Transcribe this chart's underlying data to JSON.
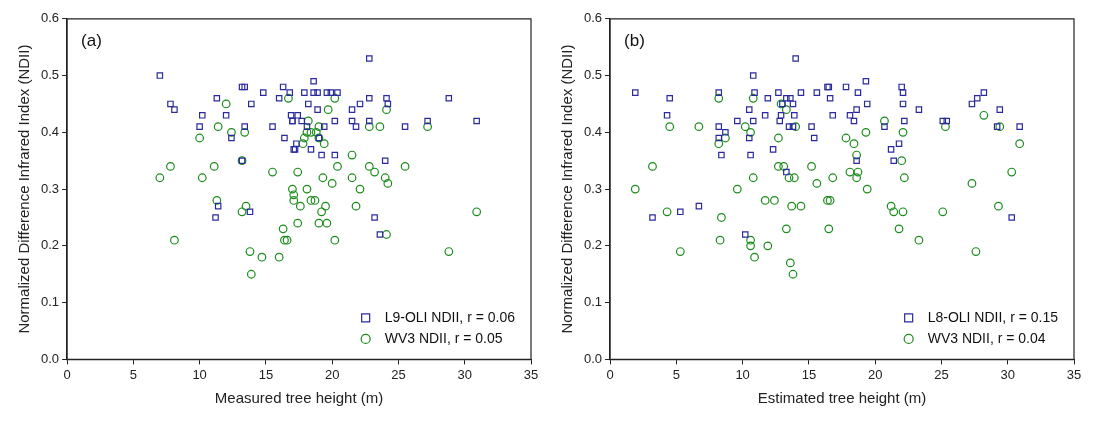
{
  "chart_data": [
    {
      "type": "scatter",
      "xlabel": "Measured tree height (m)",
      "ylabel": "Normalized Difference Infrared Index (NDII)",
      "annotations": [
        "(a)"
      ],
      "xlim": [
        0,
        35
      ],
      "xticks": [
        0,
        5,
        10,
        15,
        20,
        25,
        30,
        35
      ],
      "ylim": [
        0,
        0.6
      ],
      "yticks": [
        {
          "value": 0,
          "label": "0.0"
        },
        0.1,
        0.2,
        0.3,
        0.4,
        0.5,
        0.6
      ],
      "grid": false,
      "legend": "bottom right",
      "series": [
        {
          "name": "L9-OLI NDII, r = 0.06",
          "color": "#2a2a9e",
          "marker": "square",
          "x": [
            7.0,
            7.8,
            8.1,
            10.2,
            10.0,
            11.3,
            12.0,
            12.4,
            13.2,
            13.4,
            13.4,
            13.9,
            13.2,
            11.4,
            11.2,
            13.8,
            14.8,
            15.5,
            16.0,
            16.3,
            16.8,
            16.4,
            17.0,
            17.1,
            22.8,
            18.6,
            17.9,
            18.6,
            18.9,
            19.6,
            19.9,
            20.4,
            18.2,
            18.9,
            16.9,
            17.4,
            17.0,
            17.7,
            18.1,
            19.4,
            20.2,
            17.3,
            17.2,
            18.4,
            19.2,
            20.2,
            19.0,
            21.5,
            22.1,
            22.8,
            24.1,
            24.2,
            21.5,
            21.8,
            22.8,
            25.5,
            27.2,
            28.8,
            30.9,
            24.0,
            23.2,
            23.6
          ],
          "values": [
            0.5,
            0.45,
            0.44,
            0.43,
            0.41,
            0.46,
            0.43,
            0.39,
            0.48,
            0.48,
            0.41,
            0.45,
            0.35,
            0.27,
            0.25,
            0.26,
            0.47,
            0.41,
            0.46,
            0.48,
            0.47,
            0.39,
            0.42,
            0.37,
            0.53,
            0.49,
            0.47,
            0.47,
            0.47,
            0.47,
            0.47,
            0.47,
            0.45,
            0.44,
            0.43,
            0.43,
            0.42,
            0.42,
            0.41,
            0.41,
            0.42,
            0.38,
            0.37,
            0.37,
            0.36,
            0.36,
            0.39,
            0.44,
            0.45,
            0.46,
            0.46,
            0.45,
            0.42,
            0.41,
            0.42,
            0.41,
            0.42,
            0.46,
            0.42,
            0.35,
            0.25,
            0.22
          ]
        },
        {
          "name": "WV3 NDII, r = 0.05",
          "color": "#1a8c1a",
          "marker": "circle",
          "x": [
            7.0,
            7.8,
            8.1,
            10.0,
            10.2,
            11.1,
            11.3,
            11.4,
            12.0,
            12.4,
            13.4,
            13.2,
            13.5,
            13.2,
            13.8,
            13.9,
            14.7,
            15.5,
            16.0,
            16.3,
            16.4,
            16.6,
            16.7,
            17.0,
            17.1,
            17.1,
            20.2,
            19.7,
            18.2,
            18.1,
            18.4,
            18.8,
            19.0,
            17.9,
            17.8,
            19.0,
            19.4,
            22.8,
            23.6,
            24.1,
            27.2,
            21.5,
            17.4,
            20.4,
            19.3,
            20.0,
            21.5,
            22.1,
            22.8,
            23.2,
            24.0,
            24.2,
            25.5,
            18.1,
            18.4,
            18.7,
            17.6,
            19.5,
            19.2,
            21.8,
            17.4,
            19.0,
            19.6,
            20.2,
            24.1,
            30.9,
            28.8
          ],
          "values": [
            0.32,
            0.34,
            0.21,
            0.39,
            0.32,
            0.34,
            0.28,
            0.41,
            0.45,
            0.4,
            0.4,
            0.35,
            0.27,
            0.26,
            0.19,
            0.15,
            0.18,
            0.33,
            0.18,
            0.23,
            0.21,
            0.21,
            0.46,
            0.3,
            0.29,
            0.28,
            0.46,
            0.44,
            0.42,
            0.4,
            0.4,
            0.4,
            0.41,
            0.39,
            0.38,
            0.39,
            0.38,
            0.41,
            0.41,
            0.44,
            0.41,
            0.36,
            0.33,
            0.34,
            0.32,
            0.31,
            0.32,
            0.3,
            0.34,
            0.33,
            0.32,
            0.31,
            0.34,
            0.3,
            0.28,
            0.28,
            0.27,
            0.27,
            0.26,
            0.27,
            0.24,
            0.24,
            0.24,
            0.21,
            0.22,
            0.26,
            0.19
          ]
        }
      ]
    },
    {
      "type": "scatter",
      "xlabel": "Estimated tree height (m)",
      "ylabel": "Normalized Difference Infrared Index (NDII)",
      "annotations": [
        "(b)"
      ],
      "xlim": [
        0,
        35
      ],
      "xticks": [
        0,
        5,
        10,
        15,
        20,
        25,
        30,
        35
      ],
      "ylim": [
        0,
        0.6
      ],
      "yticks": [
        {
          "value": 0,
          "label": "0.0"
        },
        0.1,
        0.2,
        0.3,
        0.4,
        0.5,
        0.6
      ],
      "grid": false,
      "legend": "bottom right",
      "series": [
        {
          "name": "L8-OLI NDII, r = 0.15",
          "color": "#2a2a9e",
          "marker": "square",
          "x": [
            1.9,
            3.2,
            4.3,
            4.5,
            5.3,
            6.7,
            8.2,
            8.2,
            8.2,
            8.4,
            8.7,
            9.6,
            10.2,
            10.5,
            10.5,
            10.6,
            10.8,
            10.9,
            10.8,
            11.7,
            11.9,
            12.3,
            12.7,
            12.8,
            12.9,
            13.0,
            13.3,
            13.6,
            13.8,
            13.9,
            13.5,
            13.8,
            13.3,
            14.0,
            14.4,
            15.2,
            15.4,
            15.6,
            16.4,
            16.5,
            16.6,
            16.8,
            17.8,
            18.7,
            19.3,
            19.4,
            18.6,
            18.1,
            18.4,
            18.6,
            20.7,
            21.2,
            21.8,
            21.4,
            22.0,
            22.1,
            22.1,
            23.3,
            22.2,
            25.1,
            25.4,
            27.3,
            27.7,
            28.2,
            29.4,
            29.2,
            30.9,
            30.3
          ],
          "values": [
            0.47,
            0.25,
            0.43,
            0.46,
            0.26,
            0.27,
            0.47,
            0.41,
            0.39,
            0.36,
            0.4,
            0.42,
            0.22,
            0.44,
            0.39,
            0.36,
            0.5,
            0.47,
            0.42,
            0.43,
            0.46,
            0.37,
            0.47,
            0.42,
            0.43,
            0.45,
            0.46,
            0.46,
            0.45,
            0.43,
            0.41,
            0.41,
            0.33,
            0.53,
            0.47,
            0.41,
            0.39,
            0.47,
            0.48,
            0.48,
            0.46,
            0.43,
            0.48,
            0.47,
            0.49,
            0.45,
            0.44,
            0.43,
            0.42,
            0.35,
            0.41,
            0.37,
            0.38,
            0.35,
            0.48,
            0.47,
            0.45,
            0.44,
            0.42,
            0.42,
            0.42,
            0.45,
            0.46,
            0.47,
            0.44,
            0.41,
            0.41,
            0.25
          ]
        },
        {
          "name": "WV3 NDII, r = 0.04",
          "color": "#1a8c1a",
          "marker": "circle",
          "x": [
            1.9,
            3.2,
            4.5,
            4.3,
            5.3,
            6.7,
            8.2,
            8.2,
            8.7,
            8.4,
            8.3,
            9.6,
            10.2,
            10.6,
            10.8,
            10.6,
            10.6,
            10.9,
            10.8,
            11.7,
            12.4,
            11.9,
            12.7,
            12.9,
            13.3,
            14.0,
            12.7,
            13.1,
            13.5,
            13.9,
            13.7,
            14.4,
            13.3,
            13.6,
            13.8,
            15.2,
            15.6,
            16.4,
            16.8,
            16.6,
            16.5,
            17.8,
            18.4,
            18.6,
            18.7,
            18.1,
            18.6,
            19.4,
            19.3,
            20.7,
            21.2,
            21.4,
            21.8,
            22.1,
            22.0,
            22.2,
            22.1,
            23.3,
            25.3,
            25.1,
            27.3,
            27.6,
            28.2,
            29.4,
            29.3,
            30.3,
            30.9
          ],
          "values": [
            0.3,
            0.34,
            0.41,
            0.26,
            0.19,
            0.41,
            0.46,
            0.38,
            0.39,
            0.25,
            0.21,
            0.3,
            0.41,
            0.4,
            0.46,
            0.21,
            0.2,
            0.18,
            0.32,
            0.28,
            0.28,
            0.2,
            0.39,
            0.45,
            0.44,
            0.41,
            0.34,
            0.34,
            0.32,
            0.32,
            0.27,
            0.27,
            0.23,
            0.17,
            0.15,
            0.34,
            0.31,
            0.28,
            0.32,
            0.28,
            0.23,
            0.39,
            0.38,
            0.36,
            0.33,
            0.33,
            0.32,
            0.3,
            0.4,
            0.42,
            0.27,
            0.26,
            0.23,
            0.4,
            0.35,
            0.32,
            0.26,
            0.21,
            0.41,
            0.26,
            0.31,
            0.19,
            0.43,
            0.41,
            0.27,
            0.33,
            0.38
          ]
        }
      ]
    }
  ]
}
